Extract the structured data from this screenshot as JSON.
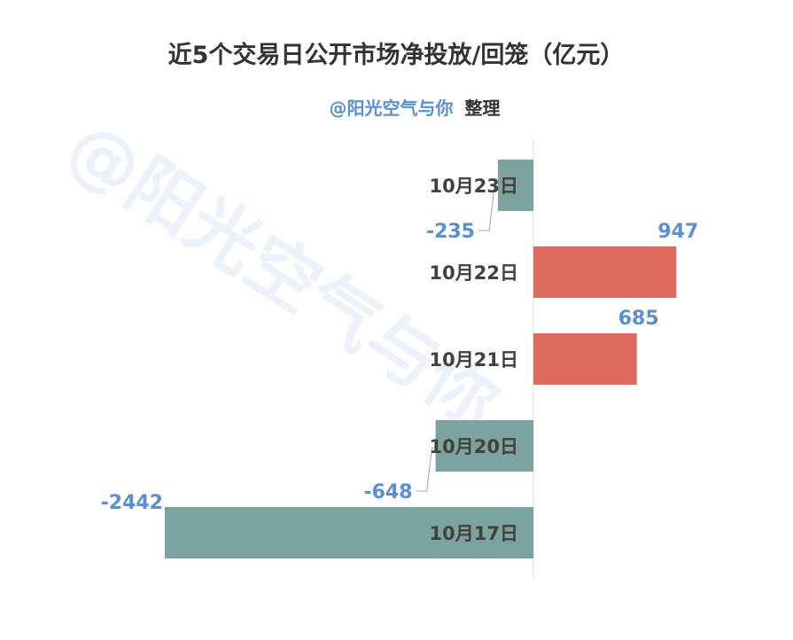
{
  "chart_data": {
    "type": "bar",
    "orientation": "horizontal",
    "title": "近5个交易日公开市场净投放/回笼（亿元）",
    "subtitle": {
      "author": "@阳光空气与你",
      "suffix": "整理"
    },
    "watermark": "@阳光空气与你",
    "categories": [
      "10月23日",
      "10月22日",
      "10月21日",
      "10月20日",
      "10月17日"
    ],
    "values": [
      -235,
      947,
      685,
      -648,
      -2442
    ],
    "xlim": [
      -2442,
      1000
    ],
    "grid": false,
    "legend": "none"
  },
  "colors": {
    "positive": "#dd6b5f",
    "negative": "#7da39e",
    "value_label": "#5b8fd0",
    "axis": "#d9d9d9",
    "leader": "#a6a6a6"
  }
}
